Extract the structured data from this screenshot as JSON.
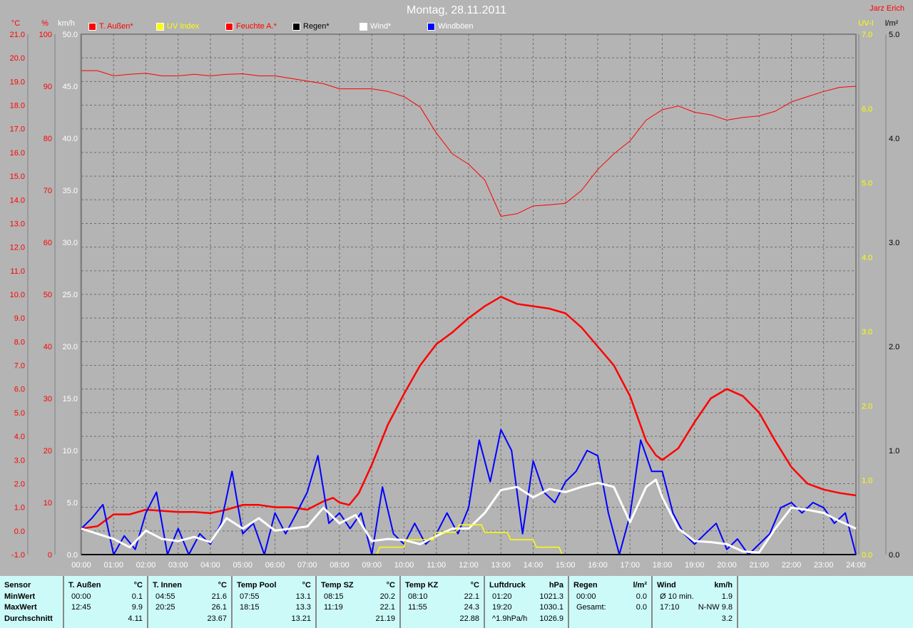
{
  "header": {
    "title": "Montag, 28.11.2011",
    "author": "Jarz Erich"
  },
  "legend": [
    {
      "label": "T. Außen*",
      "color": "#ff0000",
      "text_color": "#ff0000"
    },
    {
      "label": "UV Index",
      "color": "#ffff00",
      "text_color": "#ffff00"
    },
    {
      "label": "Feuchte A.*",
      "color": "#ff0000",
      "text_color": "#ff0000"
    },
    {
      "label": "Regen*",
      "color": "#000000",
      "text_color": "#000000"
    },
    {
      "label": "Wind*",
      "color": "#ffffff",
      "text_color": "#ffffff"
    },
    {
      "label": "Windböen",
      "color": "#0000ff",
      "text_color": "#ffffff"
    }
  ],
  "chart_data": {
    "type": "line",
    "title": "Montag, 28.11.2011",
    "x_ticks": [
      "00:00",
      "01:00",
      "02:00",
      "03:00",
      "04:00",
      "05:00",
      "06:00",
      "07:00",
      "08:00",
      "09:00",
      "10:00",
      "11:00",
      "12:00",
      "13:00",
      "14:00",
      "15:00",
      "16:00",
      "17:00",
      "18:00",
      "19:00",
      "20:00",
      "21:00",
      "22:00",
      "23:00",
      "24:00"
    ],
    "axes": {
      "temp": {
        "unit": "°C",
        "range": [
          -1,
          21
        ],
        "ticks": [
          "-1.0",
          "0.0",
          "1.0",
          "2.0",
          "3.0",
          "4.0",
          "5.0",
          "6.0",
          "7.0",
          "8.0",
          "9.0",
          "10.0",
          "11.0",
          "12.0",
          "13.0",
          "14.0",
          "15.0",
          "16.0",
          "17.0",
          "18.0",
          "19.0",
          "20.0",
          "21.0"
        ]
      },
      "hum": {
        "unit": "%",
        "range": [
          0,
          100
        ],
        "ticks": [
          "0",
          "10",
          "20",
          "30",
          "40",
          "50",
          "60",
          "70",
          "80",
          "90",
          "100"
        ]
      },
      "wind": {
        "unit": "km/h",
        "range": [
          0,
          50
        ],
        "ticks": [
          "0.0",
          "5.0",
          "10.0",
          "15.0",
          "20.0",
          "25.0",
          "30.0",
          "35.0",
          "40.0",
          "45.0",
          "50.0"
        ]
      },
      "uv": {
        "unit": "UV-I",
        "range": [
          0,
          7
        ],
        "ticks": [
          "0.0",
          "1.0",
          "2.0",
          "3.0",
          "4.0",
          "5.0",
          "6.0",
          "7.0"
        ]
      },
      "rain": {
        "unit": "l/m²",
        "range": [
          0,
          5
        ],
        "ticks": [
          "0.0",
          "1.0",
          "2.0",
          "3.0",
          "4.0",
          "5.0"
        ]
      }
    },
    "series": [
      {
        "name": "Feuchte A.*",
        "axis": "hum",
        "color": "#ff0000",
        "width": 1,
        "x": [
          0,
          0.5,
          1,
          1.5,
          2,
          2.5,
          3,
          3.5,
          4,
          4.5,
          5,
          5.5,
          6,
          6.5,
          7,
          7.5,
          8,
          8.5,
          9,
          9.5,
          10,
          10.5,
          11,
          11.5,
          12,
          12.5,
          13,
          13.5,
          14,
          14.5,
          15,
          15.5,
          16,
          16.5,
          17,
          17.5,
          18,
          18.5,
          19,
          19.5,
          20,
          20.5,
          21,
          21.5,
          22,
          22.5,
          23,
          23.5,
          24
        ],
        "y": [
          93,
          93,
          92,
          92.3,
          92.5,
          92,
          92,
          92.3,
          92,
          92.3,
          92.4,
          92,
          92,
          91.5,
          91,
          90.5,
          89.5,
          89.5,
          89.5,
          89,
          88,
          86,
          81,
          77,
          75,
          72,
          65,
          65.5,
          67,
          67.2,
          67.5,
          70,
          74,
          77,
          79.5,
          83.5,
          85.5,
          86.2,
          85,
          84.5,
          83.5,
          84,
          84.3,
          85.2,
          87,
          88,
          89,
          89.8,
          90
        ]
      },
      {
        "name": "T. Außen*",
        "axis": "temp",
        "color": "#ff0000",
        "width": 2.5,
        "x": [
          0,
          0.5,
          1,
          1.5,
          2,
          2.5,
          3,
          3.5,
          4,
          4.5,
          5,
          5.5,
          6,
          6.5,
          7,
          7.5,
          7.8,
          8,
          8.3,
          8.6,
          9,
          9.5,
          10,
          10.5,
          11,
          11.5,
          12,
          12.5,
          13,
          13.5,
          14,
          14.5,
          15,
          15.5,
          16,
          16.5,
          17,
          17.5,
          17.8,
          18,
          18.5,
          19,
          19.5,
          20,
          20.5,
          21,
          21.5,
          22,
          22.5,
          23,
          23.5,
          24
        ],
        "y": [
          0.1,
          0.2,
          0.7,
          0.7,
          0.9,
          0.85,
          0.8,
          0.8,
          0.75,
          0.9,
          1.1,
          1.1,
          1.0,
          1.0,
          0.9,
          1.25,
          1.4,
          1.2,
          1.1,
          1.6,
          2.8,
          4.5,
          5.8,
          7.0,
          7.9,
          8.4,
          9.0,
          9.5,
          9.9,
          9.6,
          9.5,
          9.4,
          9.2,
          8.6,
          7.8,
          7.0,
          5.7,
          3.8,
          3.2,
          3.0,
          3.5,
          4.6,
          5.6,
          6.0,
          5.7,
          5.0,
          3.8,
          2.7,
          2.0,
          1.75,
          1.6,
          1.5
        ]
      },
      {
        "name": "Windböen",
        "axis": "wind",
        "color": "#0000ff",
        "width": 2,
        "x": [
          0,
          0.33,
          0.67,
          1,
          1.33,
          1.67,
          2,
          2.33,
          2.67,
          3,
          3.33,
          3.67,
          4,
          4.33,
          4.67,
          5,
          5.33,
          5.67,
          6,
          6.33,
          6.67,
          7,
          7.33,
          7.67,
          8,
          8.33,
          8.67,
          9,
          9.33,
          9.67,
          10,
          10.33,
          10.67,
          11,
          11.33,
          11.67,
          12,
          12.33,
          12.67,
          13,
          13.33,
          13.67,
          14,
          14.33,
          14.67,
          15,
          15.33,
          15.67,
          16,
          16.33,
          16.67,
          17,
          17.33,
          17.67,
          18,
          18.33,
          18.67,
          19,
          19.33,
          19.67,
          20,
          20.33,
          20.67,
          21,
          21.33,
          21.67,
          22,
          22.33,
          22.67,
          23,
          23.33,
          23.67,
          24
        ],
        "y": [
          2.5,
          3.5,
          4.8,
          0,
          1.8,
          0.5,
          4,
          6,
          0,
          2.5,
          0,
          2,
          1,
          3,
          8,
          2,
          3,
          0,
          4,
          2,
          4,
          6,
          9.5,
          3,
          4,
          2.5,
          4,
          0,
          6.5,
          2,
          1,
          3,
          1,
          2,
          4,
          2,
          4.5,
          11,
          7,
          12,
          10,
          2,
          9,
          6,
          5,
          7,
          8,
          10,
          9.5,
          4,
          0,
          3.8,
          11,
          8,
          8,
          4,
          2,
          1,
          2,
          3,
          0.5,
          1.5,
          0,
          1,
          2,
          4.5,
          5,
          4,
          5,
          4.5,
          3,
          4,
          0
        ]
      },
      {
        "name": "Wind*",
        "axis": "wind",
        "color": "#ffffff",
        "width": 3,
        "x": [
          0,
          0.5,
          1,
          1.5,
          2,
          2.5,
          3,
          3.5,
          4,
          4.5,
          5,
          5.5,
          6,
          6.5,
          7,
          7.5,
          8,
          8.5,
          9,
          9.5,
          10,
          10.5,
          11,
          11.5,
          12,
          12.5,
          13,
          13.5,
          14,
          14.5,
          15,
          15.5,
          16,
          16.5,
          17,
          17.5,
          17.8,
          18,
          18.5,
          19,
          19.5,
          20,
          20.5,
          21,
          21.5,
          22,
          22.5,
          23,
          23.5,
          24
        ],
        "y": [
          2.5,
          2,
          1.5,
          0.7,
          2.3,
          1.5,
          1.3,
          1.7,
          1.2,
          3.5,
          2.5,
          3.5,
          2.3,
          2.5,
          2.7,
          4.5,
          3,
          3.8,
          1.3,
          1.5,
          1.4,
          1.0,
          1.8,
          2.5,
          2.5,
          4,
          6.2,
          6.5,
          5.5,
          6.3,
          6,
          6.5,
          6.9,
          6.5,
          3.1,
          6.5,
          7.2,
          5.5,
          2.5,
          1.3,
          1.2,
          1.0,
          0.3,
          0.2,
          2.5,
          4.5,
          4.3,
          4.0,
          3.2,
          2.5
        ]
      },
      {
        "name": "UV Index",
        "axis": "uv",
        "color": "#ffff00",
        "width": 1.5,
        "x": [
          9.15,
          9.25,
          10,
          10.05,
          10.9,
          11,
          11.6,
          11.7,
          12.4,
          12.5,
          13.2,
          13.3,
          14,
          14.1,
          14.8,
          14.9
        ],
        "y": [
          0,
          0.1,
          0.1,
          0.2,
          0.2,
          0.3,
          0.3,
          0.4,
          0.4,
          0.3,
          0.3,
          0.2,
          0.2,
          0.1,
          0.1,
          0
        ]
      },
      {
        "name": "Regen*",
        "axis": "rain",
        "color": "#000000",
        "width": 2,
        "x": [
          0,
          24
        ],
        "y": [
          0,
          0
        ]
      }
    ]
  },
  "table": {
    "columns": [
      {
        "header": "Sensor",
        "unit": "",
        "rows": [
          [
            "MinWert",
            ""
          ],
          [
            "MaxWert",
            ""
          ],
          [
            "Durchschnitt",
            ""
          ]
        ]
      },
      {
        "header": "T. Außen",
        "unit": "°C",
        "rows": [
          [
            "00:00",
            "0.1"
          ],
          [
            "12:45",
            "9.9"
          ],
          [
            "",
            "4.11"
          ]
        ]
      },
      {
        "header": "T. Innen",
        "unit": "°C",
        "rows": [
          [
            "04:55",
            "21.6"
          ],
          [
            "20:25",
            "26.1"
          ],
          [
            "",
            "23.67"
          ]
        ]
      },
      {
        "header": "Temp Pool",
        "unit": "°C",
        "rows": [
          [
            "07:55",
            "13.1"
          ],
          [
            "18:15",
            "13.3"
          ],
          [
            "",
            "13.21"
          ]
        ]
      },
      {
        "header": "Temp SZ",
        "unit": "°C",
        "rows": [
          [
            "08:15",
            "20.2"
          ],
          [
            "11:19",
            "22.1"
          ],
          [
            "",
            "21.19"
          ]
        ]
      },
      {
        "header": "Temp KZ",
        "unit": "°C",
        "rows": [
          [
            "08:10",
            "22.1"
          ],
          [
            "11:55",
            "24.3"
          ],
          [
            "",
            "22.88"
          ]
        ]
      },
      {
        "header": "Luftdruck",
        "unit": "hPa",
        "rows": [
          [
            "01:20",
            "1021.3"
          ],
          [
            "19:20",
            "1030.1"
          ],
          [
            "^1.9hPa/h",
            "1026.9"
          ]
        ]
      },
      {
        "header": "Regen",
        "unit": "l/m²",
        "rows": [
          [
            "",
            ""
          ],
          [
            "00:00",
            "0.0"
          ],
          [
            "Gesamt:",
            "0.0"
          ]
        ]
      },
      {
        "header": "Wind",
        "unit": "km/h",
        "rows": [
          [
            "Ø 10 min.",
            "1.9"
          ],
          [
            "17:10",
            "N-NW 9.8"
          ],
          [
            "",
            "3.2"
          ]
        ]
      }
    ]
  }
}
